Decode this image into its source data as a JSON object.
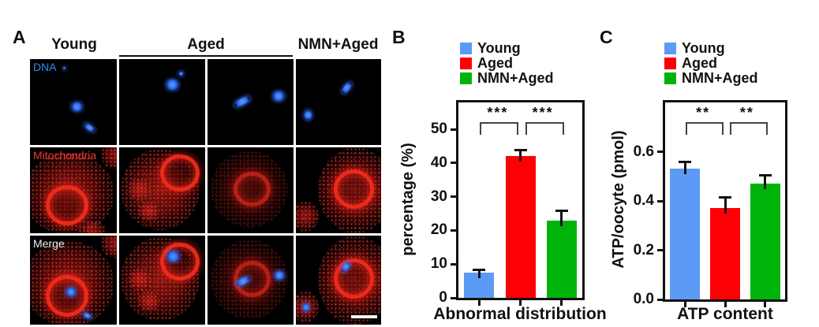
{
  "panel_a": {
    "label": "A",
    "column_headers": [
      "Young",
      "Aged",
      "NMN+Aged"
    ],
    "row_labels": [
      "DNA",
      "Mitochondria",
      "Merge"
    ]
  },
  "panel_b": {
    "label": "B"
  },
  "panel_c": {
    "label": "C"
  },
  "colors": {
    "young": "#5b9bf5",
    "aged": "#fc0006",
    "nmn_aged": "#00b30b"
  },
  "chart_data": [
    {
      "panel": "B",
      "type": "bar",
      "categories": [
        "Young",
        "Aged",
        "NMN+Aged"
      ],
      "values": [
        7.5,
        42,
        23
      ],
      "errors": [
        0.9,
        2,
        3
      ],
      "title": "",
      "xlabel": "Abnormal distribution",
      "ylabel": "percentage (%)",
      "ylim": [
        0,
        58
      ],
      "yticks": [
        {
          "v": 0,
          "label": "0"
        },
        {
          "v": 10,
          "label": "10"
        },
        {
          "v": 20,
          "label": "20"
        },
        {
          "v": 30,
          "label": "30"
        },
        {
          "v": 40,
          "label": "40"
        },
        {
          "v": 50,
          "label": "50"
        }
      ],
      "colors": [
        "#5b9bf5",
        "#fc0006",
        "#00b30b"
      ],
      "legend": [
        "Young",
        "Aged",
        "NMN+Aged"
      ],
      "legend_position": "above plot, top left",
      "grid": false,
      "significance": [
        {
          "a": 0,
          "b": 1,
          "label": "***"
        },
        {
          "a": 1,
          "b": 2,
          "label": "***"
        }
      ]
    },
    {
      "panel": "C",
      "type": "bar",
      "categories": [
        "Young",
        "Aged",
        "NMN+Aged"
      ],
      "values": [
        0.53,
        0.37,
        0.47
      ],
      "errors": [
        0.03,
        0.045,
        0.035
      ],
      "title": "",
      "xlabel": "ATP content",
      "ylabel": "ATP/oocyte (pmol)",
      "ylim": [
        0,
        0.8
      ],
      "yticks": [
        {
          "v": 0,
          "label": "0.0"
        },
        {
          "v": 0.2,
          "label": "0.2"
        },
        {
          "v": 0.4,
          "label": "0.4"
        },
        {
          "v": 0.6,
          "label": "0.6"
        }
      ],
      "colors": [
        "#5b9bf5",
        "#fc0006",
        "#00b30b"
      ],
      "legend": [
        "Young",
        "Aged",
        "NMN+Aged"
      ],
      "legend_position": "above plot, top left",
      "grid": false,
      "significance": [
        {
          "a": 0,
          "b": 1,
          "label": "**"
        },
        {
          "a": 1,
          "b": 2,
          "label": "**"
        }
      ]
    }
  ]
}
